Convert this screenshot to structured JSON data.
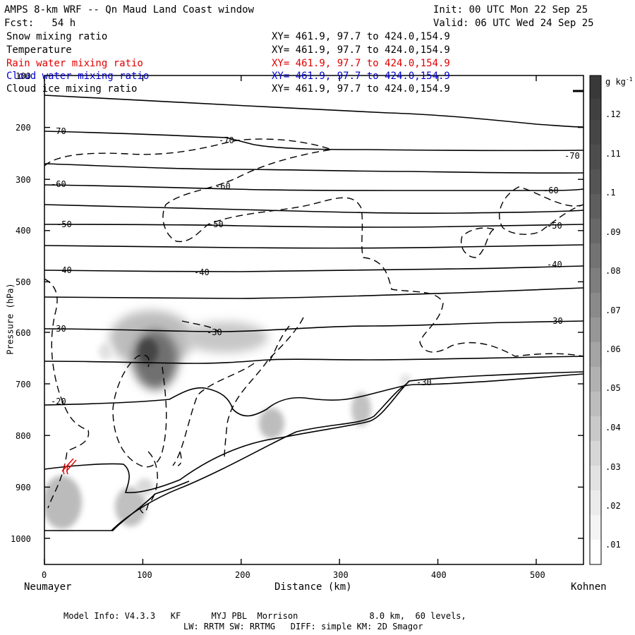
{
  "header": {
    "title": "AMPS 8-km WRF -- Qn Maud Land Coast window",
    "init": "Init: 00 UTC Mon 22 Sep 25",
    "fcst": "Fcst:   54 h",
    "valid": "Valid: 06 UTC Wed 24 Sep 25"
  },
  "fields": [
    {
      "name": "Snow mixing ratio",
      "xy": "XY= 461.9, 97.7 to 424.0,154.9",
      "color": "#000000"
    },
    {
      "name": "Temperature",
      "xy": "XY= 461.9, 97.7 to 424.0,154.9",
      "color": "#000000"
    },
    {
      "name": "Rain water mixing ratio",
      "xy": "XY= 461.9, 97.7 to 424.0,154.9",
      "color": "#e00000"
    },
    {
      "name": "Cloud water mixing ratio",
      "xy": "XY= 461.9, 97.7 to 424.0,154.9",
      "color": "#0000cc"
    },
    {
      "name": "Cloud ice mixing ratio",
      "xy": "XY= 461.9, 97.7 to 424.0,154.9",
      "color": "#000000"
    }
  ],
  "footer": {
    "line1": "Model Info: V4.3.3   KF      MYJ PBL  Morrison              8.0 km,  60 levels,",
    "line2": "LW: RRTM SW: RRTMG   DIFF: simple KM: 2D Smagor"
  },
  "chart_data": {
    "type": "contour",
    "title": "AMPS 8-km WRF -- Qn Maud Land Coast window",
    "xlabel": "Distance (km)",
    "ylabel": "Pressure (hPa)",
    "xlim": [
      0,
      548
    ],
    "ylim": [
      1050,
      100
    ],
    "x_ticks": [
      0,
      100,
      200,
      300,
      400,
      500
    ],
    "y_ticks": [
      100,
      200,
      300,
      400,
      500,
      600,
      700,
      800,
      900,
      1000
    ],
    "start_label": "Neumayer",
    "end_label": "Kohnen",
    "colorbar": {
      "unit": "g kg",
      "unit_sup": "-1",
      "levels": [
        ".01",
        ".02",
        ".03",
        ".04",
        ".05",
        ".06",
        ".07",
        ".08",
        ".09",
        ".1",
        ".11",
        ".12"
      ]
    },
    "temperature_contours": [
      {
        "label": "-70",
        "x": [
          0,
          50,
          100,
          150,
          200,
          250,
          300,
          350,
          400,
          450,
          500,
          548
        ],
        "p": [
          190,
          188,
          190,
          193,
          194,
          190,
          200,
          208,
          210,
          210,
          210,
          212
        ]
      },
      {
        "label": "-60",
        "x": [
          0,
          50,
          100,
          150,
          200,
          250,
          300,
          350,
          400,
          450,
          500,
          548
        ],
        "p": [
          275,
          275,
          282,
          287,
          290,
          290,
          290,
          291,
          288,
          283,
          283,
          280
        ]
      },
      {
        "label": "-50",
        "x": [
          0,
          50,
          100,
          150,
          200,
          250,
          300,
          350,
          400,
          450,
          500,
          548
        ],
        "p": [
          390,
          390,
          390,
          390,
          389,
          388,
          387,
          385,
          383,
          384,
          385,
          383
        ]
      },
      {
        "label": "-40",
        "x": [
          0,
          50,
          100,
          150,
          200,
          250,
          300,
          350,
          400,
          450,
          500,
          548
        ],
        "p": [
          475,
          475,
          475,
          475,
          474,
          474,
          472,
          468,
          465,
          465,
          465,
          463
        ]
      },
      {
        "label": "-30",
        "x": [
          0,
          50,
          100,
          150,
          200,
          250,
          300,
          350,
          400,
          450,
          500,
          548
        ],
        "p": [
          595,
          595,
          593,
          592,
          595,
          597,
          593,
          595,
          595,
          592,
          592,
          590
        ]
      }
    ],
    "rain_water_marks": [
      {
        "x": 25,
        "p": 865
      }
    ]
  }
}
